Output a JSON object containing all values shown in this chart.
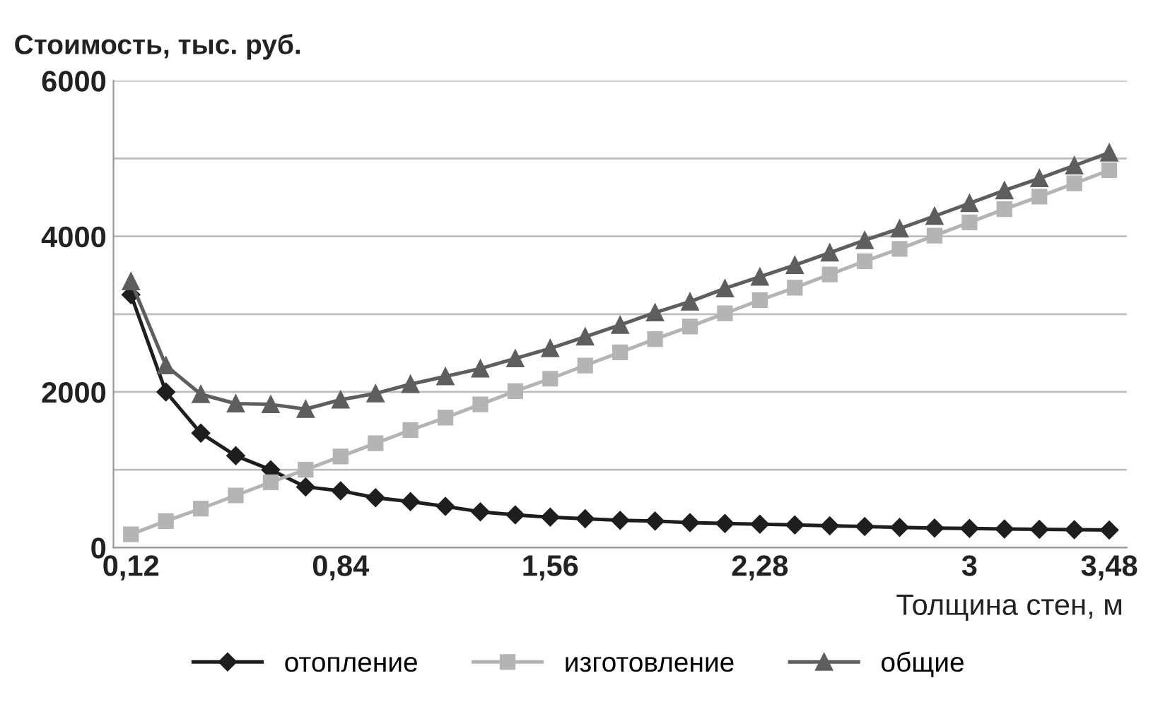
{
  "chart_data": {
    "type": "line",
    "ylabel": "Стоимость, тыс. руб.",
    "xlabel": "Толщина стен, м",
    "x": [
      0.12,
      0.24,
      0.36,
      0.48,
      0.6,
      0.72,
      0.84,
      0.96,
      1.08,
      1.2,
      1.32,
      1.44,
      1.56,
      1.68,
      1.8,
      1.92,
      2.04,
      2.16,
      2.28,
      2.4,
      2.52,
      2.64,
      2.76,
      2.88,
      3.0,
      3.12,
      3.24,
      3.36,
      3.48
    ],
    "series": [
      {
        "name": "отопление",
        "color": "#1e1e1e",
        "marker": "diamond",
        "values": [
          3250,
          2000,
          1470,
          1180,
          1000,
          780,
          730,
          640,
          590,
          530,
          460,
          420,
          390,
          370,
          350,
          340,
          320,
          310,
          300,
          290,
          280,
          270,
          260,
          250,
          245,
          240,
          235,
          230,
          225
        ]
      },
      {
        "name": "изготовление",
        "color": "#b4b4b4",
        "marker": "square",
        "values": [
          170,
          340,
          500,
          670,
          840,
          1000,
          1170,
          1340,
          1510,
          1670,
          1840,
          2010,
          2170,
          2340,
          2510,
          2680,
          2840,
          3010,
          3180,
          3340,
          3510,
          3680,
          3840,
          4010,
          4180,
          4350,
          4510,
          4680,
          4850
        ]
      },
      {
        "name": "общие",
        "color": "#5e5e5e",
        "marker": "triangle",
        "values": [
          3420,
          2340,
          1970,
          1850,
          1840,
          1780,
          1900,
          1980,
          2100,
          2200,
          2300,
          2430,
          2560,
          2710,
          2860,
          3020,
          3160,
          3330,
          3480,
          3630,
          3790,
          3950,
          4100,
          4260,
          4425,
          4590,
          4745,
          4910,
          5075
        ]
      }
    ],
    "xlim": [
      0.06,
      3.54
    ],
    "xticks": [
      {
        "value": 0.12,
        "label": "0,12"
      },
      {
        "value": 0.84,
        "label": "0,84"
      },
      {
        "value": 1.56,
        "label": "1,56"
      },
      {
        "value": 2.28,
        "label": "2,28"
      },
      3,
      {
        "value": 3.48,
        "label": "3,48"
      }
    ],
    "ylim": [
      0,
      6000
    ],
    "yticks": [
      0,
      {
        "value": 1000,
        "label": null
      },
      2000,
      {
        "value": 3000,
        "label": null
      },
      4000,
      {
        "value": 5000,
        "label": null
      },
      6000
    ],
    "grid": "y",
    "legend": "bottom",
    "line_style": "solid"
  }
}
